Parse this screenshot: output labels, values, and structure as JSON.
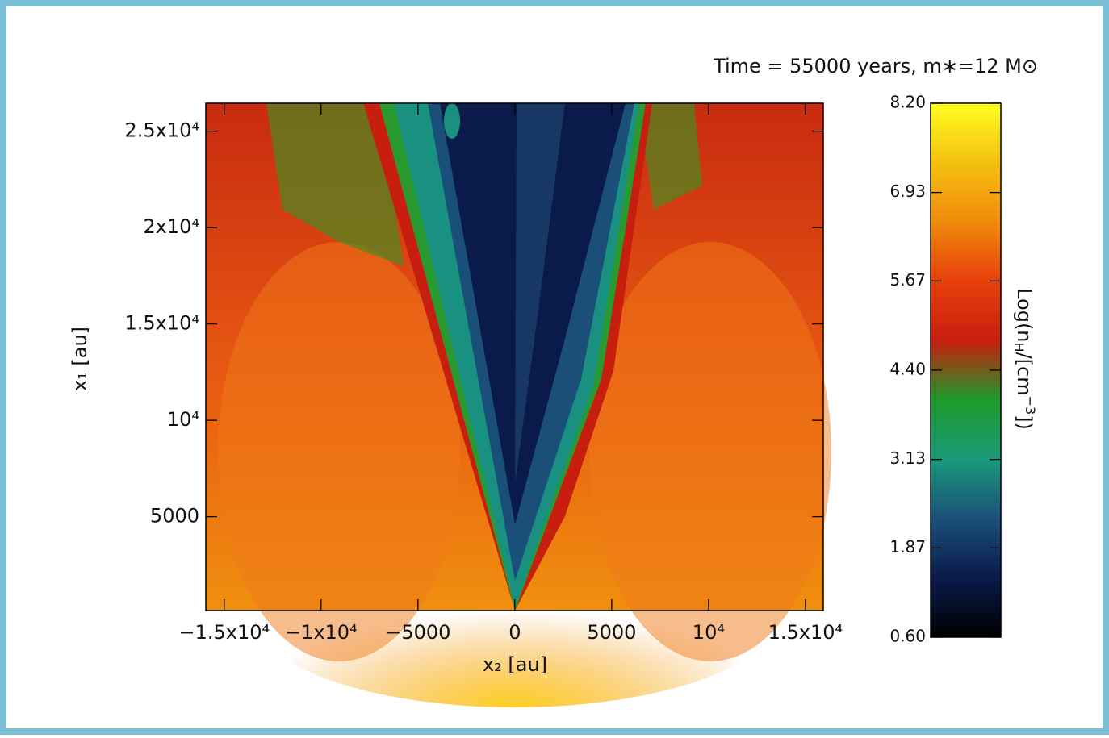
{
  "chart_data": {
    "type": "heatmap",
    "title": "Time = 55000 years, m∗=12 M⊙",
    "x_label": "x₂ [au]",
    "y_label": "x₁ [au]",
    "xlim": [
      -15950,
      15920
    ],
    "ylim": [
      130,
      26450
    ],
    "xticks": [
      {
        "value": -15000,
        "label": "−1.5x10⁴"
      },
      {
        "value": -10000,
        "label": "−1x10⁴"
      },
      {
        "value": -5000,
        "label": "−5000"
      },
      0,
      5000,
      {
        "value": 10000,
        "label": "10⁴"
      },
      {
        "value": 15000,
        "label": "1.5x10⁴"
      }
    ],
    "yticks": [
      5000,
      {
        "value": 10000,
        "label": "10⁴"
      },
      {
        "value": 15000,
        "label": "1.5x10⁴"
      },
      {
        "value": 20000,
        "label": "2x10⁴"
      },
      {
        "value": 25000,
        "label": "2.5x10⁴"
      }
    ],
    "colorbar": {
      "label_parts": [
        "Log(n",
        "H",
        "/[cm",
        "−3",
        "])"
      ],
      "clim": [
        0.6,
        8.2
      ],
      "ticks": [
        {
          "value": 0.6,
          "label": "0.60"
        },
        {
          "value": 1.87,
          "label": "1.87"
        },
        {
          "value": 3.13,
          "label": "3.13"
        },
        {
          "value": 4.4,
          "label": "4.40"
        },
        {
          "value": 5.67,
          "label": "5.67"
        },
        {
          "value": 6.93,
          "label": "6.93"
        },
        {
          "value": 8.2,
          "label": "8.20"
        }
      ],
      "colormap": [
        "#000000",
        "#0a1a4a",
        "#1a4f7a",
        "#1a9a7a",
        "#1e9a2a",
        "#c81e10",
        "#e8400c",
        "#f08a0c",
        "#f5c010",
        "#ffff20"
      ]
    }
  }
}
